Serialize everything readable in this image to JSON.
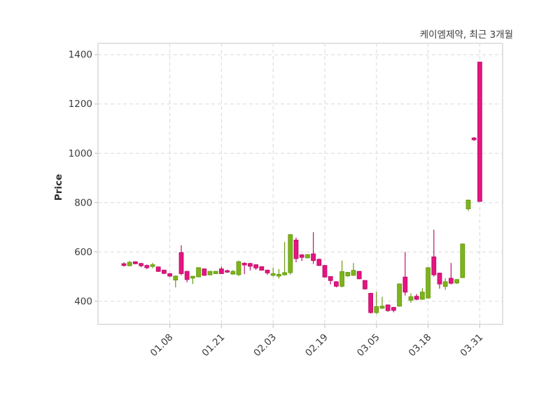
{
  "chart_data": {
    "type": "candlestick",
    "title": "케이엠제약, 최근 3개월",
    "ylabel": "Price",
    "xlabel": "",
    "ylim": [
      306,
      1446
    ],
    "yticks": [
      400,
      600,
      800,
      1000,
      1200,
      1400
    ],
    "xticks": [
      {
        "i": 8,
        "label": "01.08"
      },
      {
        "i": 17,
        "label": "01.21"
      },
      {
        "i": 26,
        "label": "02.03"
      },
      {
        "i": 35,
        "label": "02.19"
      },
      {
        "i": 44,
        "label": "03.05"
      },
      {
        "i": 53,
        "label": "03.18"
      },
      {
        "i": 62,
        "label": "03.31"
      }
    ],
    "ohlc_order": "open,high,low,close",
    "candles": [
      [
        552,
        558,
        540,
        545
      ],
      [
        544,
        564,
        542,
        558
      ],
      [
        560,
        562,
        550,
        552
      ],
      [
        553,
        556,
        538,
        544
      ],
      [
        545,
        549,
        530,
        536
      ],
      [
        541,
        556,
        534,
        548
      ],
      [
        539,
        541,
        519,
        521
      ],
      [
        526,
        528,
        510,
        513
      ],
      [
        512,
        514,
        498,
        502
      ],
      [
        486,
        504,
        456,
        502
      ],
      [
        597,
        627,
        505,
        512
      ],
      [
        521,
        523,
        477,
        488
      ],
      [
        494,
        503,
        470,
        501
      ],
      [
        499,
        538,
        497,
        536
      ],
      [
        531,
        533,
        503,
        505
      ],
      [
        507,
        523,
        505,
        521
      ],
      [
        512,
        523,
        510,
        521
      ],
      [
        531,
        540,
        510,
        512
      ],
      [
        524,
        528,
        515,
        518
      ],
      [
        510,
        526,
        508,
        521
      ],
      [
        508,
        565,
        502,
        560
      ],
      [
        554,
        558,
        510,
        547
      ],
      [
        553,
        556,
        525,
        542
      ],
      [
        548,
        550,
        527,
        535
      ],
      [
        540,
        542,
        524,
        526
      ],
      [
        526,
        528,
        507,
        515
      ],
      [
        505,
        536,
        500,
        512
      ],
      [
        502,
        530,
        492,
        509
      ],
      [
        507,
        640,
        505,
        516
      ],
      [
        516,
        672,
        508,
        670
      ],
      [
        648,
        658,
        558,
        573
      ],
      [
        588,
        591,
        563,
        578
      ],
      [
        576,
        591,
        574,
        589
      ],
      [
        592,
        680,
        551,
        565
      ],
      [
        570,
        573,
        543,
        545
      ],
      [
        545,
        547,
        496,
        498
      ],
      [
        500,
        502,
        468,
        484
      ],
      [
        479,
        481,
        456,
        461
      ],
      [
        461,
        565,
        456,
        520
      ],
      [
        503,
        519,
        499,
        517
      ],
      [
        505,
        555,
        503,
        525
      ],
      [
        521,
        523,
        489,
        491
      ],
      [
        484,
        486,
        447,
        450
      ],
      [
        432,
        434,
        350,
        354
      ],
      [
        354,
        438,
        348,
        378
      ],
      [
        372,
        418,
        368,
        380
      ],
      [
        385,
        387,
        357,
        362
      ],
      [
        375,
        377,
        355,
        363
      ],
      [
        380,
        472,
        378,
        470
      ],
      [
        498,
        600,
        423,
        437
      ],
      [
        404,
        432,
        394,
        418
      ],
      [
        420,
        429,
        404,
        408
      ],
      [
        408,
        453,
        406,
        437
      ],
      [
        413,
        538,
        411,
        536
      ],
      [
        580,
        690,
        500,
        507
      ],
      [
        514,
        516,
        451,
        470
      ],
      [
        460,
        493,
        446,
        479
      ],
      [
        493,
        555,
        468,
        473
      ],
      [
        474,
        490,
        470,
        488
      ],
      [
        496,
        634,
        494,
        632
      ],
      [
        775,
        812,
        766,
        810
      ],
      [
        1062,
        1066,
        1050,
        1055
      ],
      [
        1370,
        1370,
        803,
        805
      ]
    ],
    "colors": {
      "up_fill": "#7eb41c",
      "up_edge": "#679b10",
      "down_fill": "#e51483",
      "down_edge": "#c01069",
      "grid": "#d9d9d9",
      "frame": "#e2e2e2",
      "tick": "#c8c8c8",
      "text": "#3a3a3a",
      "title_text": "#3d3d3d",
      "background": "#ffffff"
    },
    "grid": "dashed",
    "legend_position": "none"
  }
}
